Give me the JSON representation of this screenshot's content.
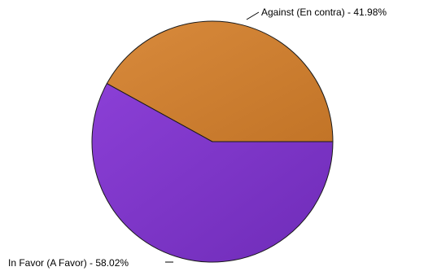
{
  "chart_data": {
    "type": "pie",
    "slices": [
      {
        "label": "In Favor (A Favor) - 58.02%",
        "value": 58.02,
        "color": "#8b3fd6",
        "color_dark": "#6f2cb8"
      },
      {
        "label": "Against (En contra) - 41.98%",
        "value": 41.98,
        "color": "#d88a3c",
        "color_dark": "#c27427"
      }
    ],
    "title": "",
    "legend": "none",
    "start_angle_deg": 0,
    "direction": "clockwise"
  }
}
